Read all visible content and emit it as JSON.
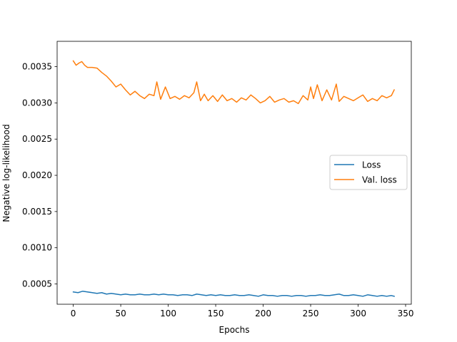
{
  "chart_data": {
    "type": "line",
    "title": "",
    "xlabel": "Epochs",
    "ylabel": "Negative log-likelihood",
    "xlim": [
      -17,
      356
    ],
    "ylim": [
      0.00022,
      0.00385
    ],
    "xticks": [
      0,
      50,
      100,
      150,
      200,
      250,
      300,
      350
    ],
    "xtick_labels": [
      "0",
      "50",
      "100",
      "150",
      "200",
      "250",
      "300",
      "350"
    ],
    "yticks": [
      0.0005,
      0.001,
      0.0015,
      0.002,
      0.0025,
      0.003,
      0.0035
    ],
    "ytick_labels": [
      "0.0005",
      "0.0010",
      "0.0015",
      "0.0020",
      "0.0025",
      "0.0030",
      "0.0035"
    ],
    "grid": false,
    "legend_position": "center-right",
    "series": [
      {
        "name": "Loss",
        "color": "#1f77b4",
        "x": [
          0,
          5,
          10,
          15,
          20,
          25,
          30,
          35,
          40,
          45,
          50,
          55,
          60,
          65,
          70,
          75,
          80,
          85,
          90,
          95,
          100,
          105,
          110,
          115,
          120,
          125,
          130,
          135,
          140,
          145,
          150,
          155,
          160,
          165,
          170,
          175,
          180,
          185,
          190,
          195,
          200,
          205,
          210,
          215,
          220,
          225,
          230,
          235,
          240,
          245,
          250,
          255,
          260,
          265,
          270,
          275,
          280,
          285,
          290,
          295,
          300,
          305,
          310,
          315,
          320,
          325,
          330,
          335,
          338
        ],
        "values": [
          0.00039,
          0.00038,
          0.0004,
          0.00039,
          0.00038,
          0.00037,
          0.00038,
          0.00036,
          0.00037,
          0.00036,
          0.00035,
          0.00036,
          0.00035,
          0.00035,
          0.00036,
          0.00035,
          0.00035,
          0.00036,
          0.00035,
          0.00036,
          0.00035,
          0.00035,
          0.00034,
          0.00035,
          0.00035,
          0.00034,
          0.00036,
          0.00035,
          0.00034,
          0.00035,
          0.00034,
          0.00035,
          0.00034,
          0.00034,
          0.00035,
          0.00034,
          0.00034,
          0.00035,
          0.00034,
          0.00033,
          0.00035,
          0.00034,
          0.00034,
          0.00033,
          0.00034,
          0.00034,
          0.00033,
          0.00034,
          0.00034,
          0.00033,
          0.00034,
          0.00034,
          0.00035,
          0.00034,
          0.00034,
          0.00035,
          0.00036,
          0.00034,
          0.00034,
          0.00035,
          0.00034,
          0.00033,
          0.00035,
          0.00034,
          0.00033,
          0.00034,
          0.00033,
          0.00034,
          0.00033
        ]
      },
      {
        "name": "Val. loss",
        "color": "#ff7f0e",
        "x": [
          0,
          3,
          6,
          9,
          12,
          15,
          20,
          25,
          30,
          35,
          40,
          45,
          50,
          55,
          60,
          65,
          70,
          75,
          80,
          85,
          88,
          92,
          97,
          102,
          107,
          112,
          117,
          122,
          127,
          130,
          134,
          138,
          142,
          147,
          152,
          157,
          162,
          167,
          172,
          177,
          182,
          187,
          192,
          197,
          202,
          207,
          212,
          217,
          222,
          227,
          232,
          237,
          242,
          247,
          250,
          253,
          257,
          262,
          267,
          272,
          277,
          280,
          285,
          290,
          295,
          300,
          305,
          310,
          315,
          320,
          325,
          330,
          335,
          338
        ],
        "values": [
          0.00358,
          0.00352,
          0.00355,
          0.00357,
          0.00352,
          0.00349,
          0.00349,
          0.00348,
          0.00342,
          0.00337,
          0.0033,
          0.00322,
          0.00326,
          0.00318,
          0.00311,
          0.00316,
          0.0031,
          0.00306,
          0.00312,
          0.0031,
          0.00329,
          0.00305,
          0.00322,
          0.00306,
          0.00309,
          0.00305,
          0.0031,
          0.00307,
          0.00314,
          0.00329,
          0.00303,
          0.00312,
          0.00303,
          0.0031,
          0.00302,
          0.00311,
          0.00303,
          0.00306,
          0.00301,
          0.00307,
          0.00304,
          0.00311,
          0.00306,
          0.003,
          0.00303,
          0.00309,
          0.00301,
          0.00304,
          0.00306,
          0.00301,
          0.00303,
          0.00299,
          0.0031,
          0.00304,
          0.00322,
          0.00306,
          0.00325,
          0.00303,
          0.00318,
          0.00304,
          0.00326,
          0.00302,
          0.00309,
          0.00306,
          0.00303,
          0.00307,
          0.00311,
          0.00302,
          0.00306,
          0.00303,
          0.0031,
          0.00307,
          0.0031,
          0.00318
        ]
      }
    ]
  }
}
